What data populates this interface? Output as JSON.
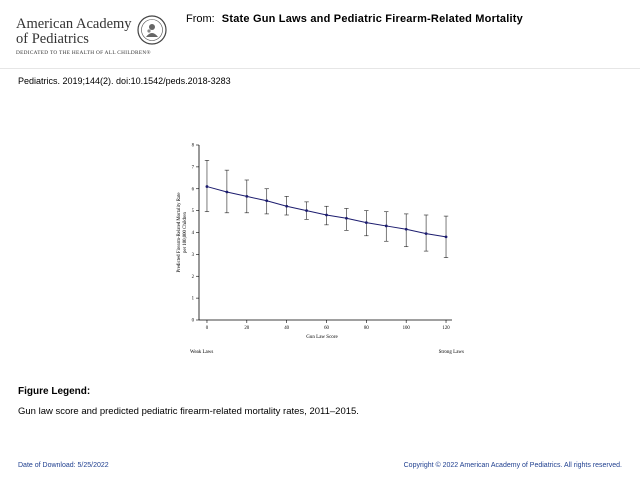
{
  "logo": {
    "line1": "American Academy",
    "line2": "of Pediatrics",
    "tagline": "DEDICATED TO THE HEALTH OF ALL CHILDREN®",
    "seal_icon": "aap-seal-icon"
  },
  "header": {
    "from_label": "From:",
    "title": "State Gun Laws and Pediatric Firearm-Related Mortality"
  },
  "citation": "Pediatrics. 2019;144(2). doi:10.1542/peds.2018-3283",
  "chart_data": {
    "type": "line",
    "xlabel": "Gun Law Score",
    "ylabel_line1": "Predicted Firearm-Related Mortality Rate",
    "ylabel_line2": "per 100,000 Children",
    "x_ticks": [
      "0",
      "20",
      "40",
      "60",
      "80",
      "100",
      "120"
    ],
    "y_ticks": [
      "0",
      "1",
      "2",
      "3",
      "4",
      "5",
      "6",
      "7",
      "8"
    ],
    "xlim": [
      -4,
      123
    ],
    "ylim": [
      0,
      8
    ],
    "grid": false,
    "left_annotation": "Weak Laws",
    "right_annotation": "Strong Laws",
    "series": [
      {
        "x": [
          0,
          10,
          20,
          30,
          40,
          50,
          60,
          70,
          80,
          90,
          100,
          110,
          120
        ],
        "y": [
          6.1,
          5.85,
          5.65,
          5.45,
          5.2,
          5.0,
          4.8,
          4.65,
          4.45,
          4.3,
          4.15,
          3.95,
          3.8
        ],
        "lower": [
          4.95,
          4.9,
          4.9,
          4.85,
          4.8,
          4.6,
          4.35,
          4.1,
          3.85,
          3.6,
          3.35,
          3.15,
          2.85
        ],
        "upper": [
          7.3,
          6.85,
          6.4,
          6.0,
          5.65,
          5.4,
          5.2,
          5.1,
          5.0,
          4.95,
          4.85,
          4.8,
          4.75
        ],
        "color": "#1c1c6e"
      }
    ]
  },
  "legend": {
    "heading": "Figure Legend:",
    "text": "Gun law score and predicted pediatric firearm-related mortality rates, 2011–2015."
  },
  "footer": {
    "date": "Date of Download:  5/25/2022",
    "copyright": "Copyright © 2022 American Academy of Pediatrics. All rights reserved."
  },
  "colors": {
    "footer_text": "#1f3f8f",
    "series_line": "#1c1c6e"
  }
}
